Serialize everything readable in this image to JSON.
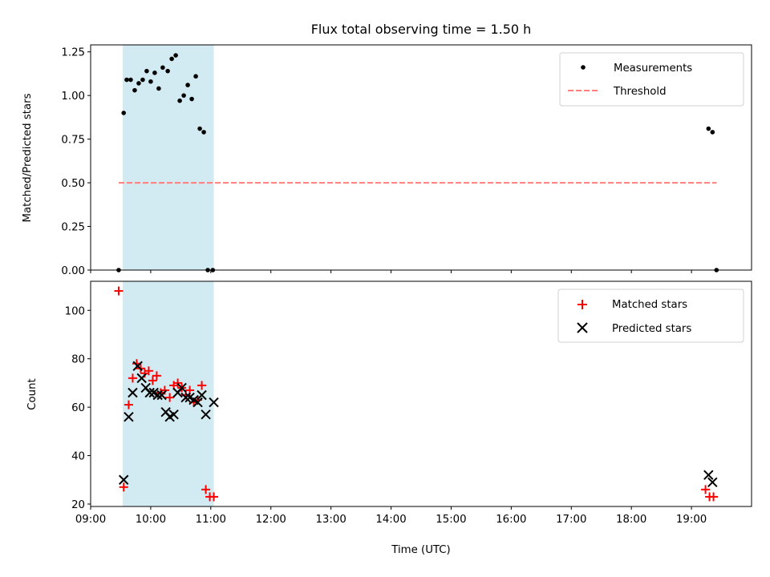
{
  "chart_data": [
    {
      "type": "scatter",
      "title": "Flux total observing time = 1.50 h",
      "ylabel": "Matched/Predicted stars",
      "xlabel": "",
      "xlim": [
        "09:00",
        "20:00"
      ],
      "ylim": [
        0,
        1.29
      ],
      "yticks": [
        "0.00",
        "0.25",
        "0.50",
        "0.75",
        "1.00",
        "1.25"
      ],
      "highlight_span": {
        "x_start": "09:32",
        "x_end": "11:03",
        "color": "#add8e6"
      },
      "legend_position": "upper right",
      "series": [
        {
          "name": "Measurements",
          "kind": "points",
          "color": "#000000",
          "x": [
            "09:28",
            "09:33",
            "09:36",
            "09:40",
            "09:44",
            "09:48",
            "09:52",
            "09:56",
            "10:00",
            "10:04",
            "10:08",
            "10:12",
            "10:17",
            "10:21",
            "10:25",
            "10:29",
            "10:33",
            "10:37",
            "10:41",
            "10:45",
            "10:49",
            "10:53",
            "10:57",
            "11:02",
            "19:17",
            "19:21",
            "19:25"
          ],
          "y": [
            0.0,
            0.9,
            1.09,
            1.09,
            1.03,
            1.07,
            1.09,
            1.14,
            1.08,
            1.13,
            1.04,
            1.16,
            1.14,
            1.21,
            1.23,
            0.97,
            1.0,
            1.06,
            0.98,
            1.11,
            0.81,
            0.79,
            0.0,
            0.0,
            0.81,
            0.79,
            0.0
          ]
        },
        {
          "name": "Threshold",
          "kind": "dashed-line",
          "color": "#ff7f7f",
          "x": [
            "09:28",
            "19:25"
          ],
          "y": [
            0.5,
            0.5
          ]
        }
      ]
    },
    {
      "type": "scatter",
      "title": "",
      "ylabel": "Count",
      "xlabel": "Time (UTC)",
      "xlim": [
        "09:00",
        "20:00"
      ],
      "ylim": [
        19,
        112
      ],
      "yticks": [
        "20",
        "40",
        "60",
        "80",
        "100"
      ],
      "xticks": [
        "09:00",
        "10:00",
        "11:00",
        "12:00",
        "13:00",
        "14:00",
        "15:00",
        "16:00",
        "17:00",
        "18:00",
        "19:00"
      ],
      "highlight_span": {
        "x_start": "09:32",
        "x_end": "11:03",
        "color": "#add8e6"
      },
      "legend_position": "upper right",
      "series": [
        {
          "name": "Matched stars",
          "marker": "plus",
          "color": "#ff0000",
          "x": [
            "09:28",
            "09:33",
            "09:38",
            "09:42",
            "09:46",
            "09:50",
            "09:54",
            "09:58",
            "10:02",
            "10:06",
            "10:10",
            "10:14",
            "10:19",
            "10:23",
            "10:27",
            "10:31",
            "10:35",
            "10:39",
            "10:43",
            "10:47",
            "10:51",
            "10:55",
            "10:59",
            "11:03",
            "19:14",
            "19:18",
            "19:22"
          ],
          "y": [
            108,
            27,
            61,
            72,
            78,
            76,
            74,
            75,
            71,
            73,
            66,
            67,
            64,
            69,
            70,
            68,
            65,
            67,
            62,
            63,
            69,
            26,
            23,
            23,
            26,
            23,
            23
          ]
        },
        {
          "name": "Predicted stars",
          "marker": "x",
          "color": "#000000",
          "x": [
            "09:33",
            "09:38",
            "09:42",
            "09:47",
            "09:51",
            "09:55",
            "09:59",
            "10:03",
            "10:07",
            "10:11",
            "10:15",
            "10:19",
            "10:23",
            "10:27",
            "10:31",
            "10:35",
            "10:39",
            "10:43",
            "10:47",
            "10:51",
            "10:55",
            "11:03",
            "19:17",
            "19:21"
          ],
          "y": [
            30,
            56,
            66,
            77,
            72,
            68,
            66,
            66,
            65,
            65,
            58,
            56,
            57,
            66,
            68,
            64,
            64,
            63,
            62,
            65,
            57,
            62,
            32,
            29
          ]
        }
      ]
    }
  ]
}
